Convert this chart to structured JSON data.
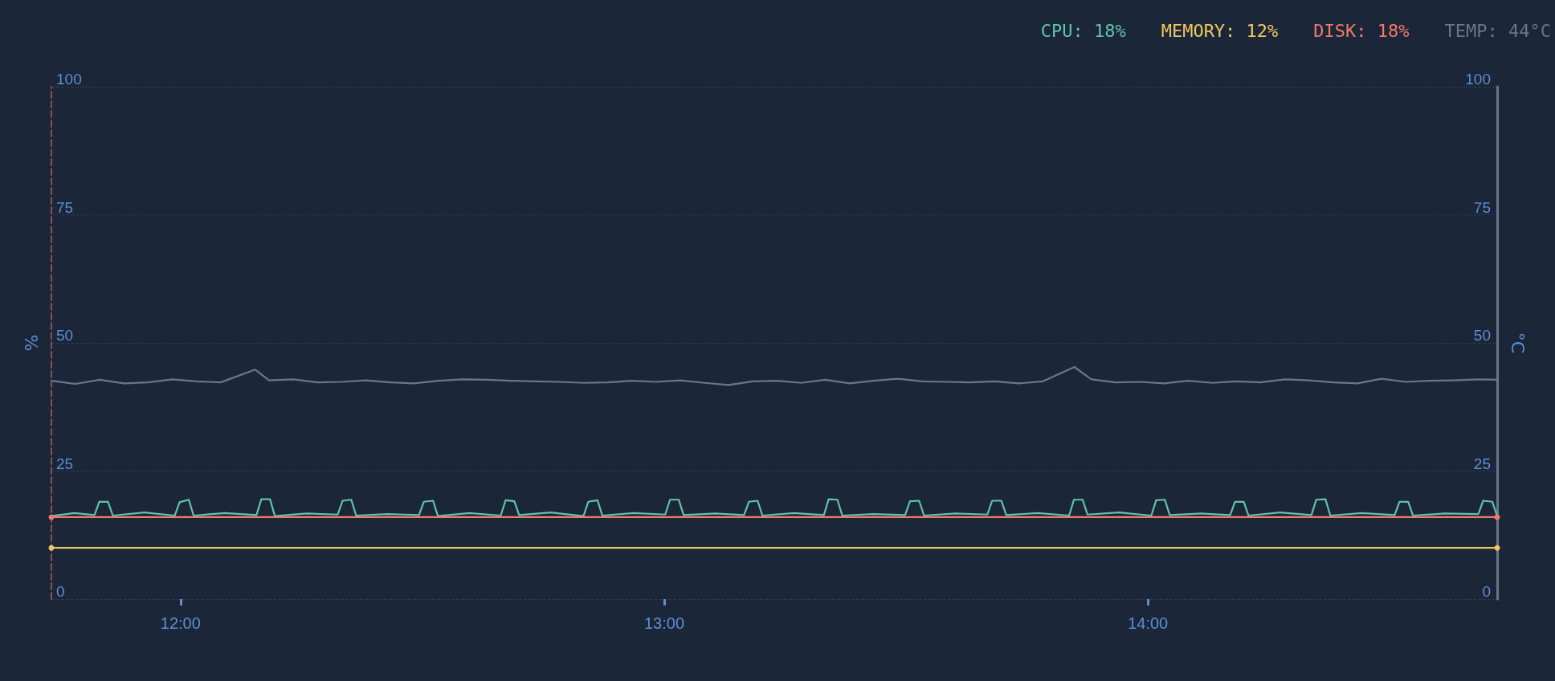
{
  "chart_data": {
    "type": "line",
    "ylabel": "%",
    "y2label": "°C",
    "xlim": [
      11.733,
      14.722
    ],
    "xticks": [
      {
        "value": 12,
        "label": "12:00"
      },
      {
        "value": 13,
        "label": "13:00"
      },
      {
        "value": 14,
        "label": "14:00"
      }
    ],
    "ylim": [
      0,
      100
    ],
    "yticks": [
      0,
      25,
      50,
      75,
      100
    ],
    "y2lim": [
      0,
      100
    ],
    "y2ticks": [
      0,
      25,
      50,
      75,
      100
    ],
    "grid": "y",
    "legend": "top right",
    "series": [
      {
        "name": "CPU: 18%",
        "color": "#5ec4ac",
        "x": [
          11.733,
          11.78,
          11.822,
          11.832,
          11.85,
          11.86,
          11.925,
          11.988,
          11.998,
          12.017,
          12.027,
          12.092,
          12.157,
          12.167,
          12.185,
          12.195,
          12.26,
          12.325,
          12.335,
          12.353,
          12.363,
          12.428,
          12.493,
          12.503,
          12.522,
          12.532,
          12.597,
          12.662,
          12.672,
          12.69,
          12.7,
          12.765,
          12.833,
          12.843,
          12.862,
          12.872,
          12.937,
          13.002,
          13.012,
          13.03,
          13.04,
          13.105,
          13.165,
          13.175,
          13.193,
          13.203,
          13.268,
          13.33,
          13.34,
          13.358,
          13.368,
          13.433,
          13.498,
          13.508,
          13.527,
          13.537,
          13.602,
          13.668,
          13.678,
          13.697,
          13.707,
          13.772,
          13.837,
          13.847,
          13.865,
          13.875,
          13.94,
          14.007,
          14.017,
          14.035,
          14.045,
          14.11,
          14.17,
          14.18,
          14.198,
          14.208,
          14.273,
          14.338,
          14.348,
          14.367,
          14.377,
          14.442,
          14.51,
          14.52,
          14.538,
          14.548,
          14.613,
          14.683,
          14.693,
          14.712,
          14.722
        ],
        "values": [
          16.2,
          16.8,
          16.4,
          19.0,
          19.0,
          16.3,
          16.9,
          16.3,
          18.9,
          19.4,
          16.3,
          16.8,
          16.4,
          19.5,
          19.5,
          16.2,
          16.7,
          16.5,
          19.2,
          19.4,
          16.3,
          16.6,
          16.4,
          19.0,
          19.2,
          16.2,
          16.8,
          16.3,
          19.3,
          19.1,
          16.4,
          16.9,
          16.2,
          19.0,
          19.3,
          16.3,
          16.8,
          16.5,
          19.4,
          19.4,
          16.4,
          16.7,
          16.4,
          19.0,
          19.2,
          16.3,
          16.8,
          16.4,
          19.5,
          19.4,
          16.3,
          16.6,
          16.4,
          19.1,
          19.2,
          16.3,
          16.7,
          16.5,
          19.2,
          19.2,
          16.4,
          16.8,
          16.3,
          19.4,
          19.4,
          16.5,
          16.9,
          16.3,
          19.3,
          19.4,
          16.4,
          16.7,
          16.4,
          19.0,
          19.0,
          16.3,
          16.9,
          16.4,
          19.4,
          19.5,
          16.3,
          16.8,
          16.4,
          19.0,
          19.0,
          16.3,
          16.7,
          16.6,
          19.2,
          19.0,
          16.2
        ]
      },
      {
        "name": "MEMORY: 12%",
        "color": "#f0c75e",
        "marker": "circle",
        "x": [
          11.733,
          14.722
        ],
        "values": [
          10,
          10
        ]
      },
      {
        "name": "DISK: 18%",
        "color": "#f07a6a",
        "marker": "circle",
        "x": [
          11.733,
          14.722
        ],
        "values": [
          16,
          16
        ]
      },
      {
        "name": "TEMP: 44°C",
        "color": "#66788c",
        "axis": "y2",
        "x": [
          11.733,
          11.783,
          11.833,
          11.883,
          11.933,
          11.983,
          12.033,
          12.083,
          12.154,
          12.183,
          12.233,
          12.283,
          12.333,
          12.383,
          12.433,
          12.483,
          12.533,
          12.583,
          12.633,
          12.683,
          12.733,
          12.783,
          12.833,
          12.883,
          12.933,
          12.983,
          13.033,
          13.083,
          13.133,
          13.183,
          13.233,
          13.283,
          13.333,
          13.383,
          13.433,
          13.483,
          13.533,
          13.583,
          13.633,
          13.683,
          13.733,
          13.783,
          13.848,
          13.883,
          13.933,
          13.983,
          14.033,
          14.083,
          14.133,
          14.183,
          14.233,
          14.283,
          14.333,
          14.383,
          14.433,
          14.483,
          14.533,
          14.583,
          14.633,
          14.683,
          14.722
        ],
        "values": [
          42.6,
          42.0,
          42.8,
          42.1,
          42.3,
          42.9,
          42.5,
          42.3,
          44.8,
          42.7,
          42.9,
          42.3,
          42.4,
          42.7,
          42.3,
          42.1,
          42.6,
          42.9,
          42.8,
          42.6,
          42.5,
          42.4,
          42.2,
          42.3,
          42.6,
          42.4,
          42.7,
          42.2,
          41.8,
          42.5,
          42.6,
          42.2,
          42.8,
          42.1,
          42.6,
          43.0,
          42.5,
          42.4,
          42.3,
          42.5,
          42.1,
          42.5,
          45.3,
          42.9,
          42.3,
          42.4,
          42.1,
          42.6,
          42.2,
          42.5,
          42.3,
          42.9,
          42.7,
          42.3,
          42.1,
          43.0,
          42.4,
          42.6,
          42.7,
          42.9,
          42.8
        ]
      }
    ]
  }
}
